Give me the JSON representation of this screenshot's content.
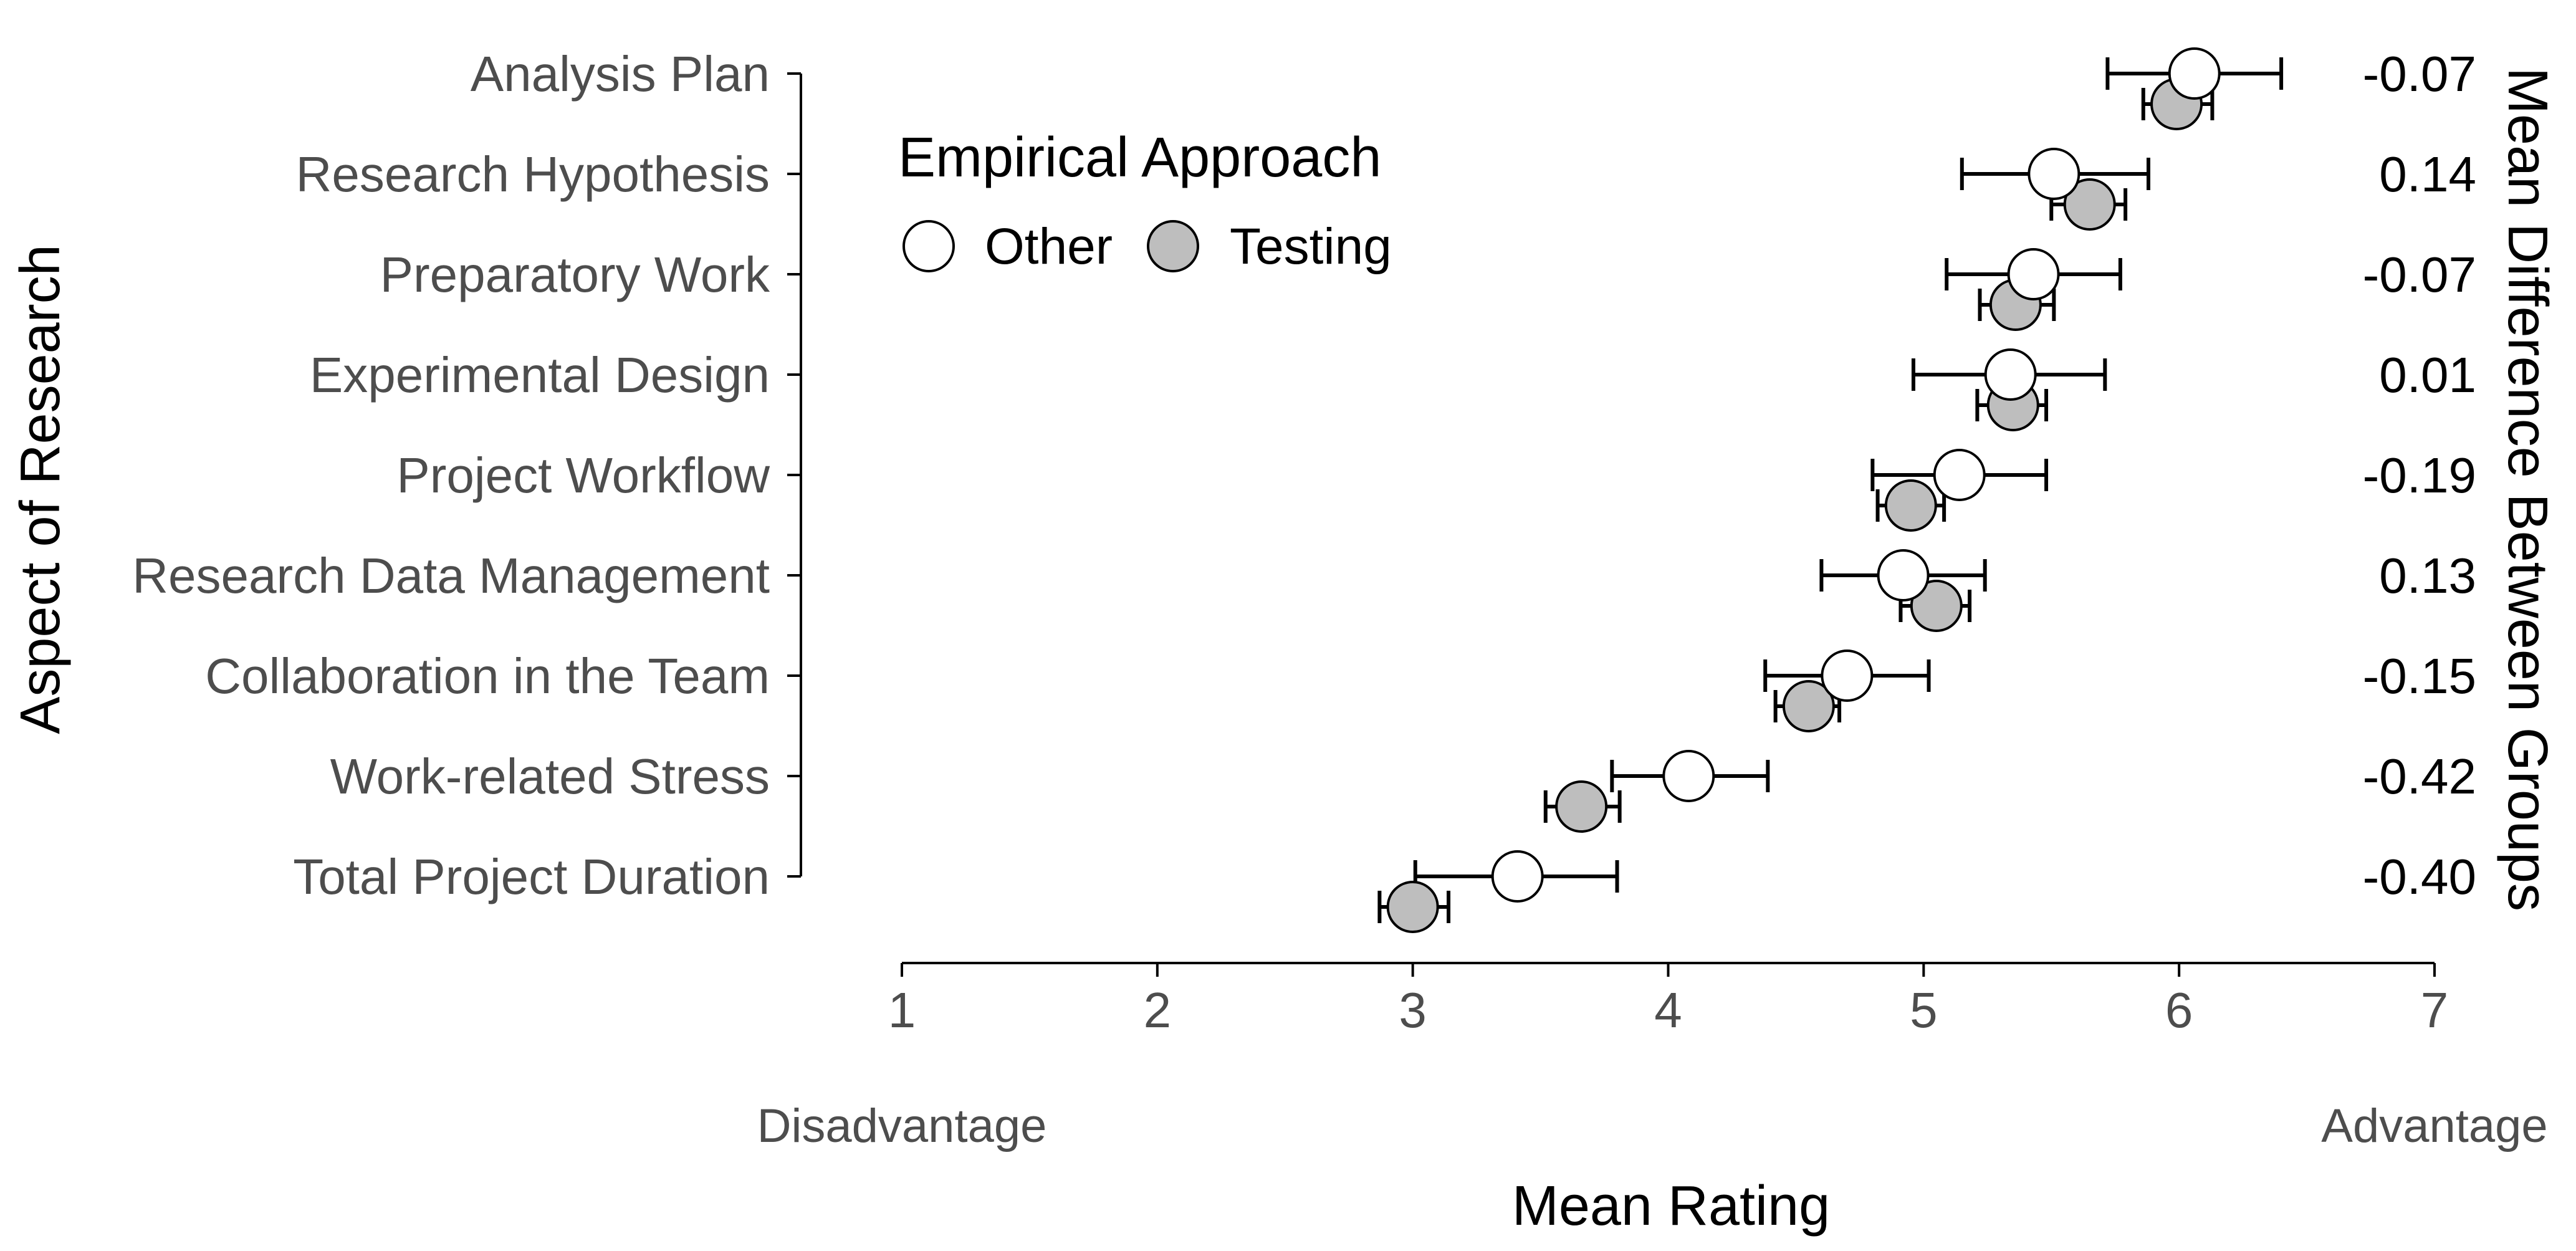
{
  "chart_data": {
    "type": "dot-errorbar",
    "xlabel": "Mean Rating",
    "ylabel": "Aspect of Research",
    "y2label": "Mean Difference Between Groups",
    "xlim": [
      1,
      7
    ],
    "xticks": [
      "1",
      "2",
      "3",
      "4",
      "5",
      "6",
      "7"
    ],
    "x_end_labels": {
      "left": "Disadvantage",
      "right": "Advantage"
    },
    "legend": {
      "title": "Empirical Approach",
      "placement": "top-left",
      "entries": [
        {
          "name": "Other",
          "color": "#ffffff"
        },
        {
          "name": "Testing",
          "color": "#bebebe"
        }
      ]
    },
    "categories": [
      "Analysis Plan",
      "Research Hypothesis",
      "Preparatory Work",
      "Experimental Design",
      "Project Workflow",
      "Research Data Management",
      "Collaboration in the Team",
      "Work-related Stress",
      "Total Project Duration"
    ],
    "series": [
      {
        "name": "Other",
        "color": "#ffffff",
        "mean": [
          6.06,
          5.51,
          5.43,
          5.34,
          5.14,
          4.92,
          4.7,
          4.08,
          3.41
        ],
        "low": [
          5.72,
          5.15,
          5.09,
          4.96,
          4.8,
          4.6,
          4.38,
          3.78,
          3.01
        ],
        "high": [
          6.4,
          5.88,
          5.77,
          5.71,
          5.48,
          5.24,
          5.02,
          4.39,
          3.8
        ]
      },
      {
        "name": "Testing",
        "color": "#bebebe",
        "mean": [
          5.99,
          5.65,
          5.36,
          5.35,
          4.95,
          5.05,
          4.55,
          3.66,
          3.0
        ],
        "low": [
          5.86,
          5.5,
          5.22,
          5.21,
          4.82,
          4.91,
          4.42,
          3.52,
          2.87
        ],
        "high": [
          6.13,
          5.79,
          5.51,
          5.48,
          5.08,
          5.18,
          4.67,
          3.81,
          3.14
        ]
      }
    ],
    "differences": [
      "-0.07",
      "0.14",
      "-0.07",
      "0.01",
      "-0.19",
      "0.13",
      "-0.15",
      "-0.42",
      "-0.40"
    ]
  }
}
